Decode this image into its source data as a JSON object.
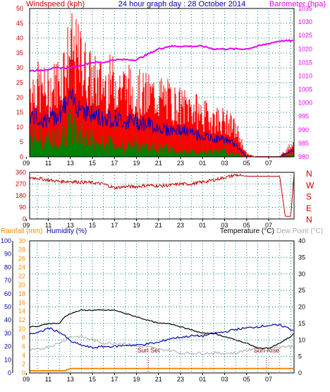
{
  "header": {
    "left": "Windspeed (kph)",
    "center": "24 hour graph day : 28 October 2014",
    "right": "Barometer (hpa)"
  },
  "colors": {
    "windspeed": "#ff0000",
    "gust": "#ff0000",
    "average": "#0000cc",
    "green": "#008000",
    "barometer": "#ee00ee",
    "direction": "#cc0000",
    "humidity": "#0000aa",
    "temperature": "#000000",
    "dewpoint": "#bbbbbb",
    "rainfall": "#ff8800",
    "rain_axis": "#ff8800",
    "left_axis": "#cc0000",
    "hum_axis": "#0000aa",
    "grid": "#008080"
  },
  "x_ticks": [
    "11",
    "13",
    "15",
    "17",
    "19",
    "21",
    "23",
    "01",
    "03",
    "05",
    "07",
    "09"
  ],
  "chart_data": [
    {
      "type": "line",
      "title": "24 hour graph day : 28 October 2014",
      "ylabel": "Windspeed (kph)",
      "y2label": "Barometer (hpa)",
      "ylim": [
        0,
        50
      ],
      "y2lim": [
        980,
        1035
      ],
      "yticks": [
        0,
        5,
        10,
        15,
        20,
        25,
        30,
        35,
        40,
        45,
        50
      ],
      "y2ticks": [
        980,
        985,
        990,
        995,
        1000,
        1005,
        1010,
        1015,
        1020,
        1025,
        1030,
        1035
      ],
      "x_hours": [
        9.3,
        10,
        11,
        12,
        13,
        14,
        15,
        16,
        17,
        18,
        19,
        20,
        21,
        22,
        23,
        24,
        25,
        26,
        27,
        28,
        29,
        30,
        31,
        32,
        33,
        33.3
      ],
      "series": [
        {
          "values": [
            25,
            25,
            23,
            28,
            38,
            34,
            27,
            26,
            27,
            25,
            23,
            22,
            22,
            20,
            18,
            18,
            15,
            14,
            13,
            10,
            1,
            0,
            0,
            0,
            4,
            5
          ]
        },
        {
          "values": [
            14,
            13,
            12,
            15,
            19,
            17,
            14,
            13,
            13,
            12,
            12,
            11,
            10,
            9,
            9,
            8,
            7,
            6,
            6,
            4,
            0,
            0,
            0,
            0,
            2,
            2
          ]
        },
        {
          "values": [
            8,
            7,
            6,
            8,
            11,
            9,
            6,
            5,
            5,
            4,
            4,
            4,
            3,
            3,
            2,
            2,
            2,
            2,
            2,
            1,
            0,
            0,
            0,
            0,
            1,
            1
          ]
        },
        {
          "values": [
            1012,
            1012,
            1012.5,
            1013,
            1013,
            1014,
            1015,
            1015,
            1016,
            1016,
            1016,
            1018,
            1020,
            1021,
            1021,
            1021,
            1021,
            1020,
            1020,
            1020,
            1020,
            1021,
            1022,
            1023,
            1023,
            1023
          ]
        }
      ]
    },
    {
      "type": "line",
      "ylim": [
        0,
        360
      ],
      "yticks": [
        0,
        90,
        180,
        270,
        360
      ],
      "right_labels": [
        "N",
        "W",
        "S",
        "E",
        "N"
      ],
      "x_hours": [
        9.3,
        10,
        11,
        12,
        13,
        14,
        15,
        16,
        17,
        18,
        19,
        20,
        21,
        22,
        23,
        24,
        25,
        26,
        27,
        28,
        29,
        30,
        31,
        32,
        32.5,
        33,
        33.3
      ],
      "values": [
        320,
        315,
        300,
        290,
        290,
        285,
        280,
        270,
        240,
        250,
        250,
        260,
        255,
        260,
        270,
        270,
        285,
        300,
        320,
        340,
        330,
        330,
        330,
        330,
        20,
        20,
        340
      ]
    },
    {
      "type": "line",
      "ylabel": "Rainfall (mm)",
      "ylabel2": "Humidity (%)",
      "y3label": "Temperature (°C)",
      "y4label": "Dew Point (°C)",
      "rain_ylim": [
        0,
        30
      ],
      "rain_ticks": [
        0,
        2,
        4,
        6,
        8,
        10,
        12,
        14,
        16,
        18,
        20,
        22,
        24,
        26,
        28,
        30
      ],
      "hum_ylim": [
        0,
        100
      ],
      "hum_ticks": [
        0,
        10,
        20,
        30,
        40,
        50,
        60,
        70,
        80,
        90,
        100
      ],
      "temp_ylim": [
        0,
        40
      ],
      "temp_ticks": [
        0,
        5,
        10,
        15,
        20,
        25,
        30,
        35,
        40
      ],
      "annotations": [
        {
          "text": "Sun Set",
          "hour": 20.1
        },
        {
          "text": "Sun Rise",
          "hour": 30.8
        }
      ],
      "x_hours": [
        9.3,
        10,
        11,
        12,
        12.5,
        13,
        14,
        15,
        16,
        17,
        18,
        19,
        20,
        21,
        22,
        23,
        24,
        25,
        26,
        27,
        28,
        29,
        30,
        31,
        32,
        32.5,
        33,
        33.3
      ],
      "series": [
        {
          "values": [
            30,
            30,
            34,
            31,
            28,
            24,
            21,
            19,
            20,
            20,
            21,
            21,
            22,
            23,
            26,
            27,
            28,
            28,
            30,
            31,
            33,
            34,
            35,
            36,
            36,
            35,
            33,
            32
          ]
        },
        {
          "values": [
            14,
            14,
            15,
            15,
            17,
            18,
            19,
            19,
            19,
            19,
            18,
            17,
            16,
            15,
            15,
            14,
            13,
            12,
            12,
            11,
            10,
            9,
            7.5,
            7.5,
            9,
            10,
            11,
            12
          ]
        },
        {
          "values": [
            7,
            7,
            8,
            9,
            10,
            11,
            11,
            10,
            9,
            9,
            9,
            8,
            8,
            7,
            7,
            6,
            6,
            6,
            6,
            6,
            6,
            7,
            7,
            7,
            8,
            8,
            8,
            8
          ]
        },
        {
          "values": [
            0.5,
            0.5,
            0.5,
            0.5,
            0.5,
            1,
            1,
            1,
            1,
            1,
            1,
            1,
            1,
            1,
            1,
            1,
            1,
            1,
            1,
            1,
            1,
            1,
            1,
            1,
            1,
            1,
            1,
            1
          ]
        }
      ]
    }
  ]
}
